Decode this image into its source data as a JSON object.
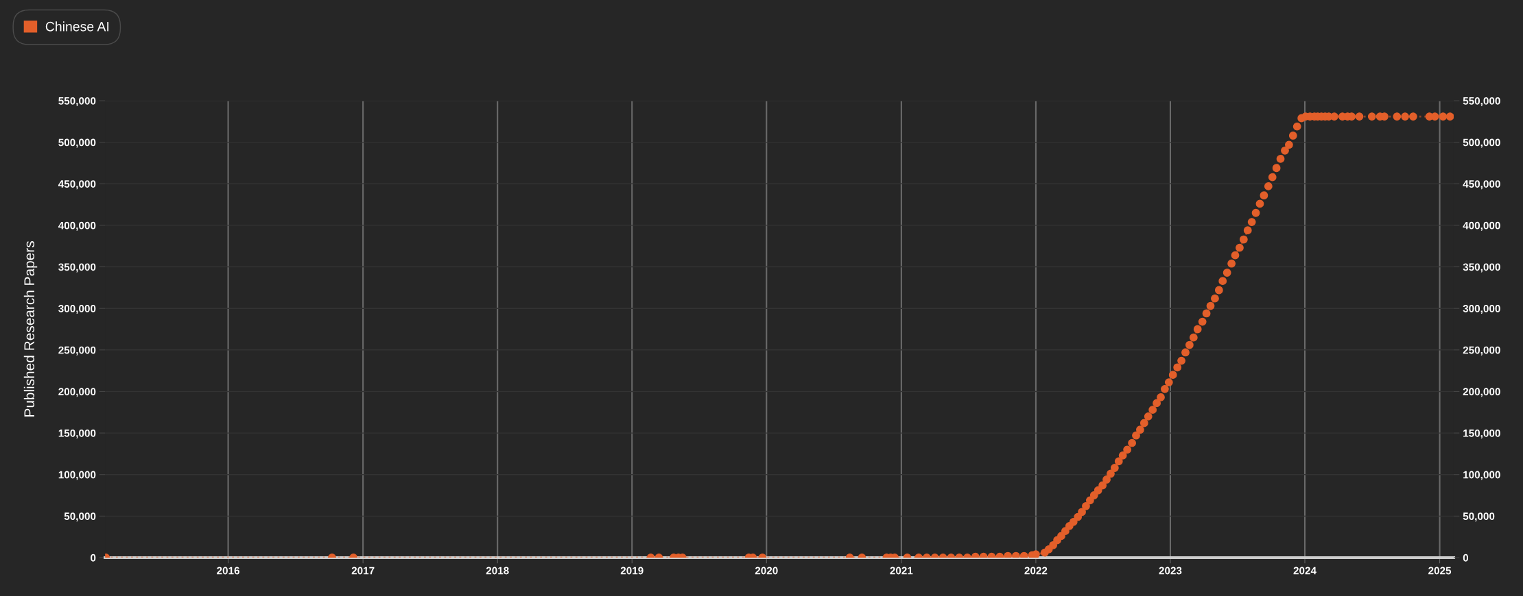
{
  "chart_data": {
    "type": "line",
    "ylabel": "Published Research Papers",
    "xlim": [
      "2015-02-01",
      "2025-02-08"
    ],
    "xticks": [
      "2016",
      "2017",
      "2018",
      "2019",
      "2020",
      "2021",
      "2022",
      "2023",
      "2024",
      "2025"
    ],
    "ylim": [
      0,
      550000
    ],
    "yticks": [
      0,
      {
        "value": 50000,
        "label": "50,000"
      },
      {
        "value": 100000,
        "label": "100,000"
      },
      {
        "value": 150000,
        "label": "150,000"
      },
      {
        "value": 200000,
        "label": "200,000"
      },
      {
        "value": 250000,
        "label": "250,000"
      },
      {
        "value": 300000,
        "label": "300,000"
      },
      {
        "value": 350000,
        "label": "350,000"
      },
      {
        "value": 400000,
        "label": "400,000"
      },
      {
        "value": 450000,
        "label": "450,000"
      },
      {
        "value": 500000,
        "label": "500,000"
      },
      {
        "value": 550000,
        "label": "550,000"
      }
    ],
    "y2lim": [
      0,
      550000
    ],
    "y2ticks": [
      0,
      {
        "value": 50000,
        "label": "50,000"
      },
      {
        "value": 100000,
        "label": "100,000"
      },
      {
        "value": 150000,
        "label": "150,000"
      },
      {
        "value": 200000,
        "label": "200,000"
      },
      {
        "value": 250000,
        "label": "250,000"
      },
      {
        "value": 300000,
        "label": "300,000"
      },
      {
        "value": 350000,
        "label": "350,000"
      },
      {
        "value": 400000,
        "label": "400,000"
      },
      {
        "value": 450000,
        "label": "450,000"
      },
      {
        "value": 500000,
        "label": "500,000"
      },
      {
        "value": 550000,
        "label": "550,000"
      }
    ],
    "grid": true,
    "legend": "top left",
    "marker": "circle",
    "line_style": "dotted",
    "series": [
      {
        "name": "Chinese AI",
        "color": "#e35f2a",
        "x": [
          "2015-02-03",
          "2016-10-09",
          "2016-12-06",
          "2019-02-21",
          "2019-03-15",
          "2019-04-24",
          "2019-05-07",
          "2019-05-18",
          "2019-11-14",
          "2019-11-25",
          "2019-12-21",
          "2020-08-14",
          "2020-09-16",
          "2020-11-22",
          "2020-12-03",
          "2020-12-14",
          "2021-01-17",
          "2021-02-17",
          "2021-03-11",
          "2021-04-02",
          "2021-04-24",
          "2021-05-16",
          "2021-06-07",
          "2021-06-29",
          "2021-07-21",
          "2021-08-12",
          "2021-09-03",
          "2021-09-25",
          "2021-10-17",
          "2021-11-08",
          "2021-11-30",
          "2021-12-22",
          "2022-01-01",
          "2022-01-25",
          "2022-02-05",
          "2022-02-17",
          "2022-02-28",
          "2022-03-11",
          "2022-03-22",
          "2022-04-02",
          "2022-04-13",
          "2022-04-25",
          "2022-05-06",
          "2022-05-17",
          "2022-05-28",
          "2022-06-08",
          "2022-06-19",
          "2022-07-01",
          "2022-07-12",
          "2022-07-23",
          "2022-08-03",
          "2022-08-14",
          "2022-08-25",
          "2022-09-06",
          "2022-09-19",
          "2022-09-30",
          "2022-10-11",
          "2022-10-22",
          "2022-11-02",
          "2022-11-14",
          "2022-11-25",
          "2022-12-06",
          "2022-12-17",
          "2022-12-28",
          "2023-01-08",
          "2023-01-20",
          "2023-01-31",
          "2023-02-11",
          "2023-02-22",
          "2023-03-05",
          "2023-03-16",
          "2023-03-29",
          "2023-04-09",
          "2023-04-20",
          "2023-05-02",
          "2023-05-13",
          "2023-05-23",
          "2023-06-04",
          "2023-06-16",
          "2023-06-26",
          "2023-07-08",
          "2023-07-19",
          "2023-07-30",
          "2023-08-10",
          "2023-08-21",
          "2023-09-01",
          "2023-09-12",
          "2023-09-24",
          "2023-10-05",
          "2023-10-16",
          "2023-10-27",
          "2023-11-08",
          "2023-11-19",
          "2023-11-30",
          "2023-12-11",
          "2023-12-23",
          "2024-01-03",
          "2024-01-15",
          "2024-01-27",
          "2024-02-05",
          "2024-02-15",
          "2024-02-25",
          "2024-03-06",
          "2024-03-21",
          "2024-04-12",
          "2024-04-26",
          "2024-05-07",
          "2024-05-28",
          "2024-07-01",
          "2024-07-23",
          "2024-08-04",
          "2024-09-07",
          "2024-09-29",
          "2024-10-21",
          "2024-12-04",
          "2024-12-19",
          "2025-01-10",
          "2025-01-29"
        ],
        "values": [
          0,
          0,
          0,
          0,
          0,
          0,
          0,
          0,
          0,
          0,
          0,
          0,
          0,
          0,
          0,
          0,
          0,
          0,
          0,
          0,
          0,
          0,
          0,
          0,
          1000,
          1000,
          1000,
          1000,
          2000,
          2000,
          2000,
          3000,
          4000,
          6000,
          10000,
          15000,
          21000,
          26000,
          32000,
          38000,
          43000,
          49000,
          55000,
          62000,
          69000,
          75000,
          81000,
          87000,
          94000,
          101000,
          108000,
          116000,
          123000,
          130000,
          138000,
          147000,
          154000,
          162000,
          170000,
          178000,
          186000,
          193000,
          203000,
          211000,
          220000,
          229000,
          237000,
          247000,
          256000,
          265000,
          275000,
          284000,
          294000,
          303000,
          312000,
          322000,
          333000,
          343000,
          354000,
          364000,
          373000,
          383000,
          394000,
          404000,
          415000,
          426000,
          436000,
          447000,
          458000,
          469000,
          480000,
          490000,
          497000,
          508000,
          519000,
          529000,
          531000,
          531000,
          531000,
          531000,
          531000,
          531000,
          531000,
          531000,
          531000,
          531000,
          531000,
          531000,
          531000,
          531000,
          531000,
          531000,
          531000,
          531000,
          531000,
          531000,
          531000,
          531000
        ]
      }
    ]
  }
}
